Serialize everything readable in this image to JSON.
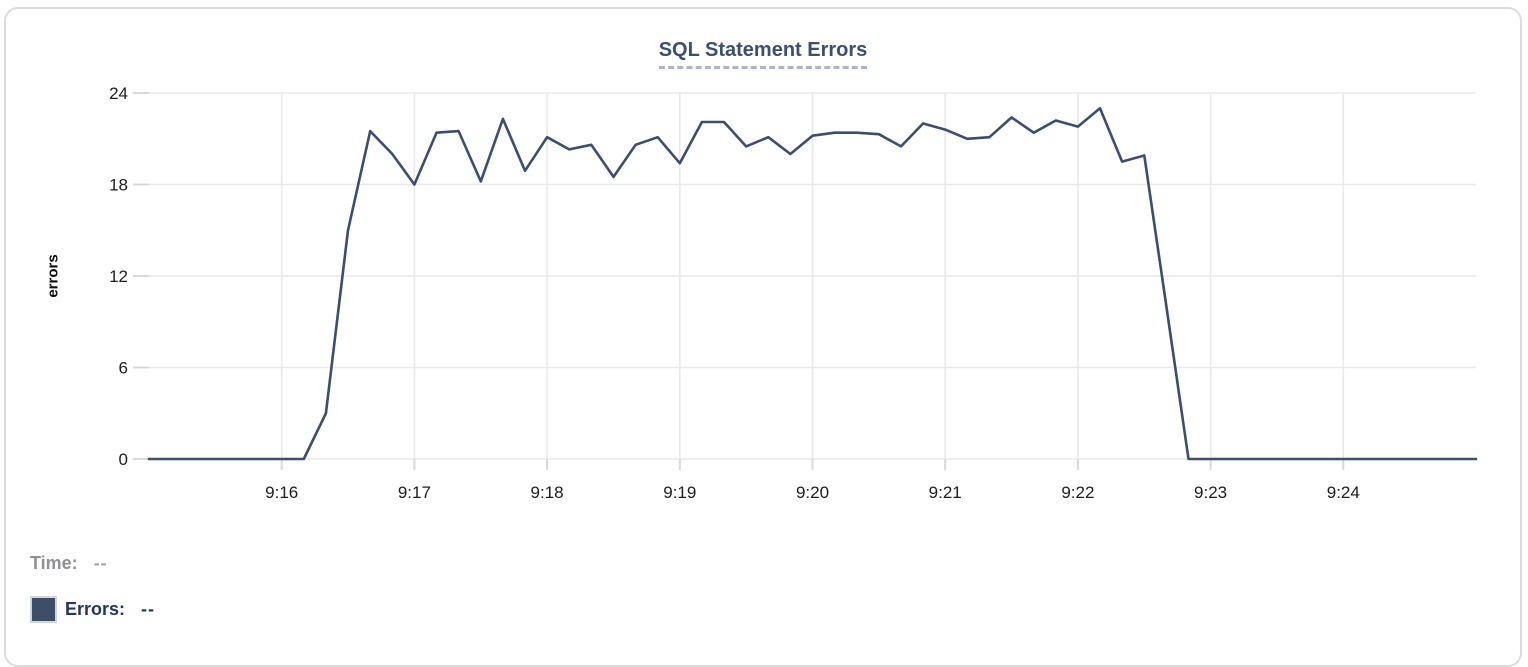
{
  "header": {
    "title": "SQL Statement Errors"
  },
  "chart_data": {
    "type": "line",
    "title": "SQL Statement Errors",
    "xlabel": "",
    "ylabel": "errors",
    "ylim": [
      0,
      24
    ],
    "y_ticks": [
      0,
      6,
      12,
      18,
      24
    ],
    "x_tick_labels": [
      "9:16",
      "9:17",
      "9:18",
      "9:19",
      "9:20",
      "9:21",
      "9:22",
      "9:23",
      "9:24"
    ],
    "x_tick_offsets_seconds": [
      60,
      120,
      180,
      240,
      300,
      360,
      420,
      480,
      540
    ],
    "x_range_seconds": [
      0,
      600
    ],
    "x_range_note": "plot spans approx 9:15:00 to 9:25:00, one sample every 10 s",
    "grid": true,
    "legend_position": "none",
    "line_color": "#3d4d6d",
    "series": [
      {
        "name": "Errors",
        "x_offset_seconds": [
          0,
          10,
          20,
          30,
          40,
          50,
          60,
          70,
          80,
          90,
          100,
          110,
          120,
          130,
          140,
          150,
          160,
          170,
          180,
          190,
          200,
          210,
          220,
          230,
          240,
          250,
          260,
          270,
          280,
          290,
          300,
          310,
          320,
          330,
          340,
          350,
          360,
          370,
          380,
          390,
          400,
          410,
          420,
          430,
          440,
          450,
          460,
          470,
          480,
          490,
          500,
          510,
          520,
          530,
          540,
          550,
          560,
          570,
          580,
          590,
          600
        ],
        "values": [
          0,
          0,
          0,
          0,
          0,
          0,
          0,
          0,
          3,
          15,
          21.5,
          20,
          18,
          21.4,
          21.5,
          18.2,
          22.3,
          18.9,
          21.1,
          20.3,
          20.6,
          18.5,
          20.6,
          21.1,
          19.4,
          22.1,
          22.1,
          20.5,
          21.1,
          20,
          21.2,
          21.4,
          21.4,
          21.3,
          20.5,
          22,
          21.6,
          21,
          21.1,
          22.4,
          21.4,
          22.2,
          21.8,
          23,
          19.5,
          19.9,
          10,
          0,
          0,
          0,
          0,
          0,
          0,
          0,
          0,
          0,
          0,
          0,
          0,
          0,
          0
        ]
      }
    ]
  },
  "tooltip_readout": {
    "time_label": "Time:",
    "time_value": "--",
    "errors_label": "Errors:",
    "errors_value": "--"
  },
  "colors": {
    "line": "#3d4d6d",
    "title_text": "#3d4f70",
    "title_underline": "#a9b6cf",
    "tick_text": "#1c1c1c",
    "gridline": "#e9e9e9",
    "tick_mark": "#d9d9d9",
    "legend_time_text": "#909095",
    "legend_errors_text": "#24365c",
    "swatch_fill": "#3e4d68",
    "card_border": "#dcdcdc"
  }
}
